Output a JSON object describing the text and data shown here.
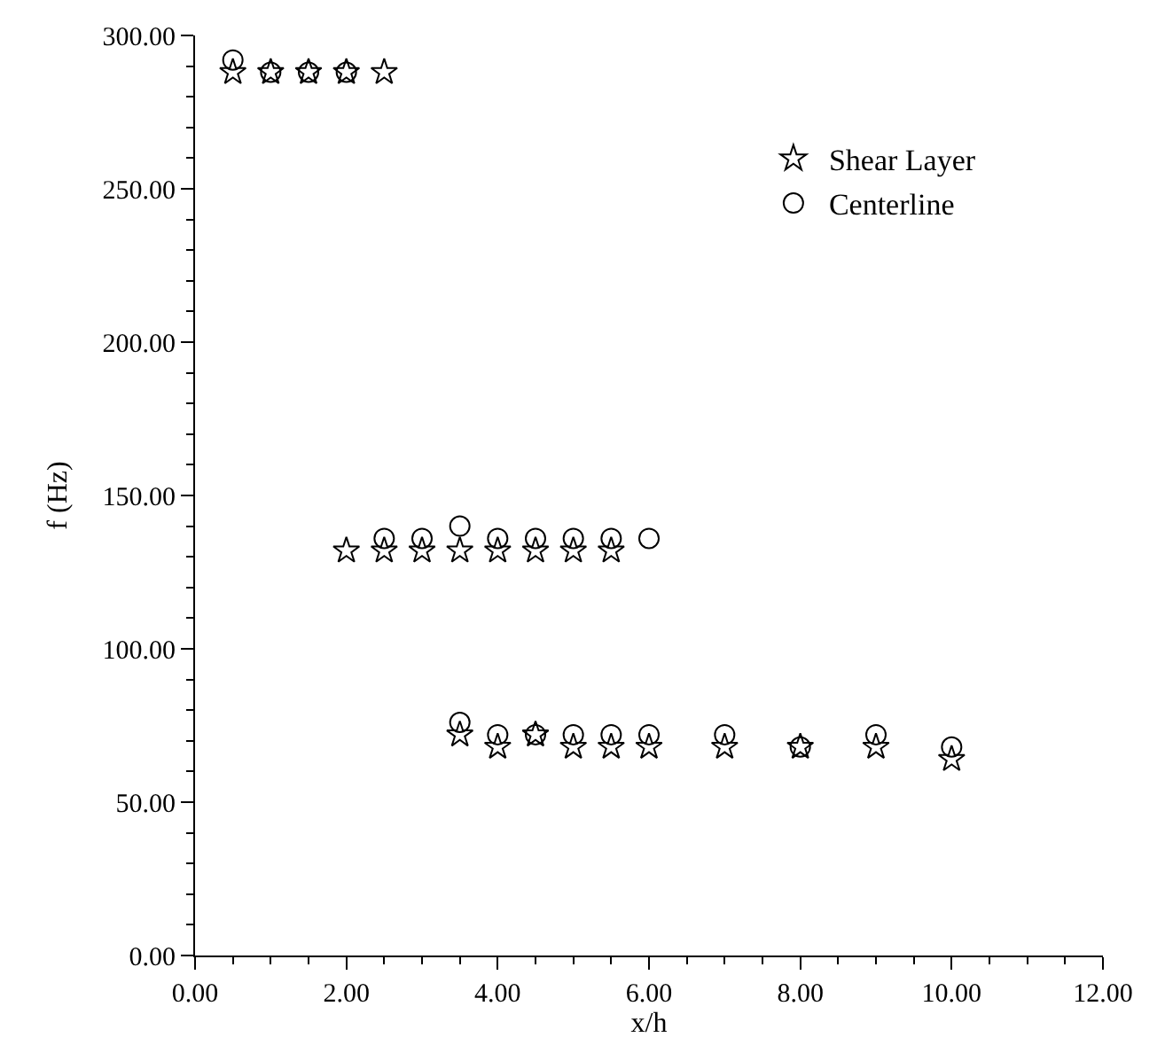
{
  "chart_data": {
    "type": "scatter",
    "xlabel": "x/h",
    "ylabel": "f (Hz)",
    "xlim": [
      0,
      12
    ],
    "ylim": [
      0,
      300
    ],
    "xticks": [
      {
        "value": 0,
        "label": "0.00"
      },
      {
        "value": 2,
        "label": "2.00"
      },
      {
        "value": 4,
        "label": "4.00"
      },
      {
        "value": 6,
        "label": "6.00"
      },
      {
        "value": 8,
        "label": "8.00"
      },
      {
        "value": 10,
        "label": "10.00"
      },
      {
        "value": 12,
        "label": "12.00"
      }
    ],
    "yticks": [
      {
        "value": 0,
        "label": "0.00"
      },
      {
        "value": 50,
        "label": "50.00"
      },
      {
        "value": 100,
        "label": "100.00"
      },
      {
        "value": 150,
        "label": "150.00"
      },
      {
        "value": 200,
        "label": "200.00"
      },
      {
        "value": 250,
        "label": "250.00"
      },
      {
        "value": 300,
        "label": "300.00"
      }
    ],
    "legend": "top right",
    "series": [
      {
        "name": "Shear Layer",
        "color": "#000000",
        "marker": "star",
        "x": [
          0.5,
          1,
          1.5,
          2,
          2.5,
          2,
          2.5,
          3,
          3.5,
          4,
          4.5,
          5,
          5.5,
          3.5,
          4,
          4.5,
          5,
          5.5,
          6,
          7,
          8,
          9,
          10
        ],
        "values": [
          288,
          288,
          288,
          288,
          288,
          132,
          132,
          132,
          132,
          132,
          132,
          132,
          132,
          72,
          68,
          72,
          68,
          68,
          68,
          68,
          68,
          68,
          64
        ]
      },
      {
        "name": "Centerline",
        "color": "#000000",
        "marker": "circle",
        "x": [
          0.5,
          1,
          1.5,
          2,
          2.5,
          3,
          3.5,
          4,
          4.5,
          5,
          5.5,
          6,
          3.5,
          4,
          4.5,
          5,
          5.5,
          6,
          7,
          8,
          9,
          10
        ],
        "values": [
          292,
          288,
          288,
          288,
          136,
          136,
          140,
          136,
          136,
          136,
          136,
          136,
          76,
          72,
          72,
          72,
          72,
          72,
          72,
          68,
          72,
          68
        ]
      }
    ]
  }
}
